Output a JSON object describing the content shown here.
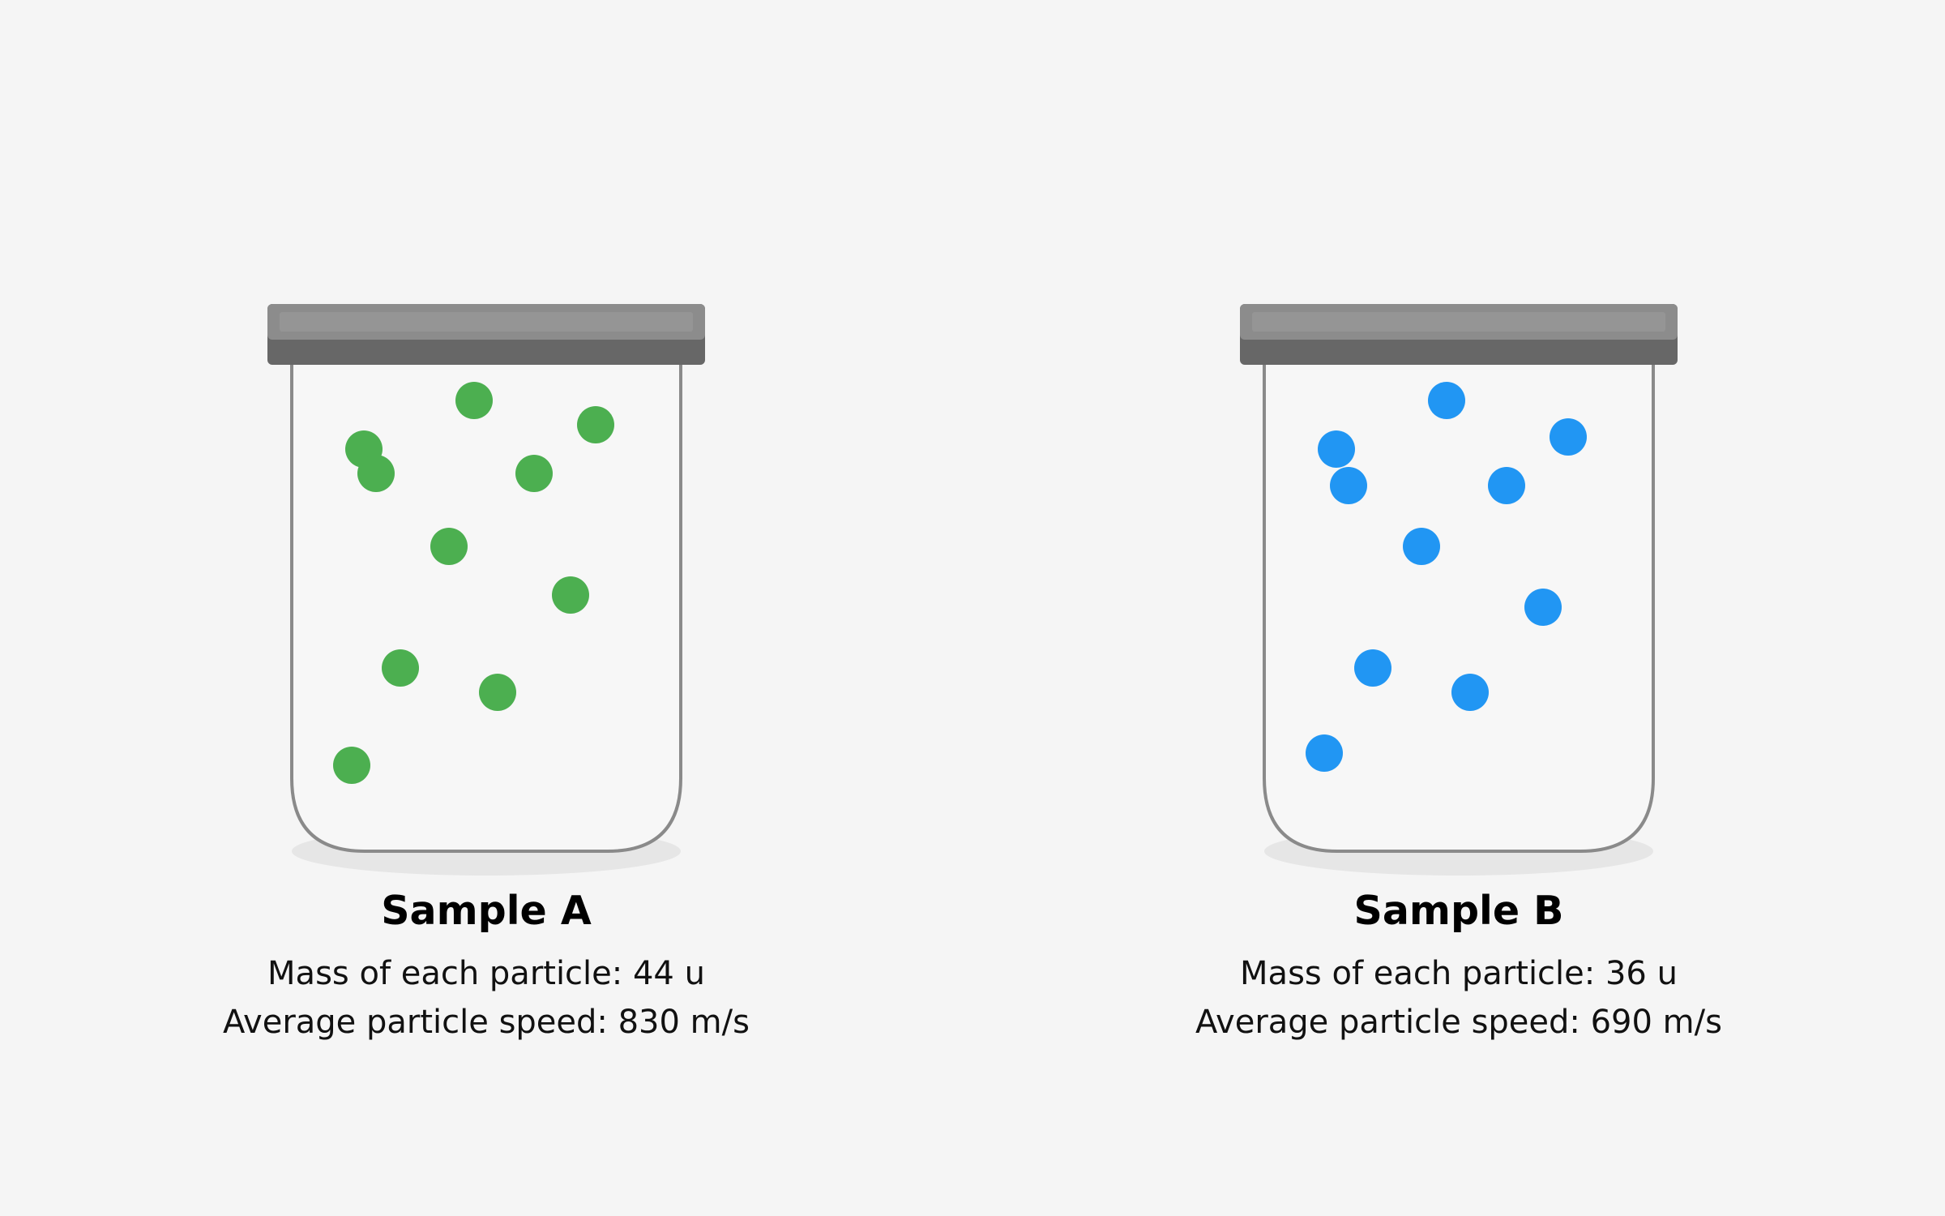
{
  "colors": {
    "background": "#f5f5f5",
    "lid": "#8c8c8c",
    "lid_dark": "#676767",
    "jar_outline": "#8a8a8a",
    "particle_a": "#4caf50",
    "particle_b": "#2196f3"
  },
  "samples": [
    {
      "name": "Sample A",
      "mass_text": "Mass of each particle: 44 u",
      "speed_text": "Average particle speed: 830 m/s",
      "particle_color_name": "green",
      "particle_count": 10
    },
    {
      "name": "Sample B",
      "mass_text": "Mass of each particle: 36 u",
      "speed_text": "Average particle speed: 690 m/s",
      "particle_color_name": "blue",
      "particle_count": 10
    }
  ]
}
